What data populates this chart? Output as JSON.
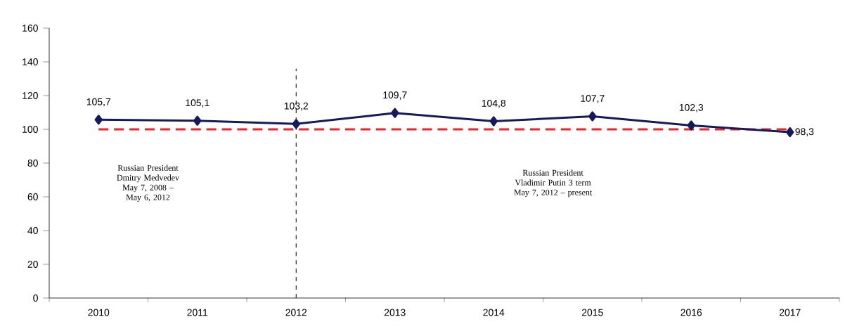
{
  "chart_data": {
    "type": "line",
    "categories": [
      "2010",
      "2011",
      "2012",
      "2013",
      "2014",
      "2015",
      "2016",
      "2017"
    ],
    "series": [
      {
        "color": "#141a5c",
        "values": [
          105.7,
          105.1,
          103.2,
          109.7,
          104.8,
          107.7,
          102.3,
          98.3
        ],
        "value_labels": [
          "105,7",
          "105,1",
          "103,2",
          "109,7",
          "104,8",
          "107,7",
          "102,3",
          "98,3"
        ]
      }
    ],
    "marker": "diamond",
    "line_style": "solid",
    "ylim": [
      0,
      160
    ],
    "yticks": [
      0,
      20,
      40,
      60,
      80,
      100,
      120,
      140,
      160
    ],
    "grid": false,
    "ref_lines": [
      {
        "axis": "y",
        "value": 100,
        "color": "#e8262a",
        "line_style": "dashed"
      },
      {
        "axis": "x",
        "value": "2012",
        "color": "#000000",
        "line_style": "dashed"
      }
    ],
    "annotations": [
      "Russian President Dmitry Medvedev May 7, 2008 – May 6, 2012",
      "Russian President Vladimir Putin 3 term May 7, 2012 – present"
    ]
  }
}
